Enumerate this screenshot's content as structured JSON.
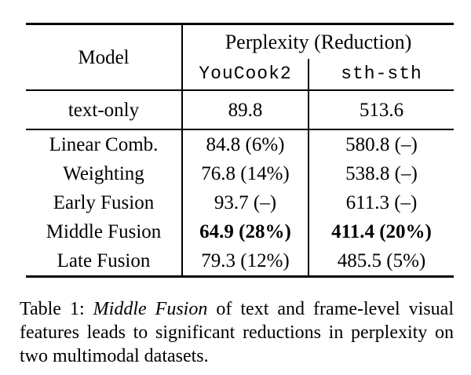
{
  "colors": {
    "background": "#ffffff",
    "text": "#000000",
    "rule": "#000000"
  },
  "table": {
    "header": {
      "model": "Model",
      "group": "Perplexity (Reduction)",
      "datasets": [
        "YouCook2",
        "sth-sth"
      ]
    },
    "baseline": {
      "model": "text-only",
      "youcook2": "89.8",
      "sth_sth": "513.6"
    },
    "rows": [
      {
        "model": "Linear Comb.",
        "youcook2": "84.8 (6%)",
        "sth_sth": "580.8 (–)",
        "emphasis": false
      },
      {
        "model": "Weighting",
        "youcook2": "76.8 (14%)",
        "sth_sth": "538.8 (–)",
        "emphasis": false
      },
      {
        "model": "Early Fusion",
        "youcook2": "93.7 (–)",
        "sth_sth": "611.3 (–)",
        "emphasis": false
      },
      {
        "model": "Middle Fusion",
        "youcook2": "64.9 (28%)",
        "sth_sth": "411.4 (20%)",
        "emphasis": true
      },
      {
        "model": "Late Fusion",
        "youcook2": "79.3 (12%)",
        "sth_sth": "485.5 (5%)",
        "emphasis": false
      }
    ]
  },
  "caption": {
    "line1_prefix": "Table 1: ",
    "line1_italic": "Middle Fusion",
    "line1_rest": " of text and frame-level visual",
    "line2": "features leads to significant reductions in perplexity on",
    "line3": "two multimodal datasets."
  }
}
